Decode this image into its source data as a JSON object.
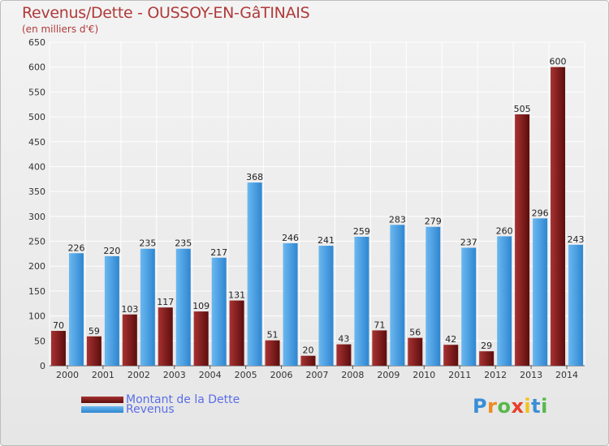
{
  "chart_data": {
    "type": "bar",
    "title": "Revenus/Dette - OUSSOY-EN-GâTINAIS",
    "subtitle": "(en milliers d'€)",
    "xlabel": "",
    "ylabel": "",
    "ylim": [
      0,
      650
    ],
    "yticks": [
      0,
      50,
      100,
      150,
      200,
      250,
      300,
      350,
      400,
      450,
      500,
      550,
      600,
      650
    ],
    "grid": true,
    "categories": [
      "2000",
      "2001",
      "2002",
      "2003",
      "2004",
      "2005",
      "2006",
      "2007",
      "2008",
      "2009",
      "2010",
      "2011",
      "2012",
      "2013",
      "2014"
    ],
    "series": [
      {
        "name": "Montant de la Dette",
        "color": "#7a1717",
        "values": [
          70,
          59,
          103,
          117,
          109,
          131,
          51,
          20,
          43,
          71,
          56,
          42,
          29,
          505,
          600
        ]
      },
      {
        "name": "Revenus",
        "color": "#4aa3e8",
        "values": [
          226,
          220,
          235,
          235,
          217,
          368,
          246,
          241,
          259,
          283,
          279,
          237,
          260,
          296,
          243
        ]
      }
    ],
    "legend_position": "bottom-left"
  },
  "logo": {
    "letters": [
      "P",
      "r",
      "o",
      "x",
      "i",
      "t",
      "i"
    ],
    "colors": [
      "#3a8fd6",
      "#f08a1e",
      "#58b84a",
      "#e8402a",
      "#f2c21a",
      "#3a8fd6",
      "#58b84a"
    ]
  }
}
